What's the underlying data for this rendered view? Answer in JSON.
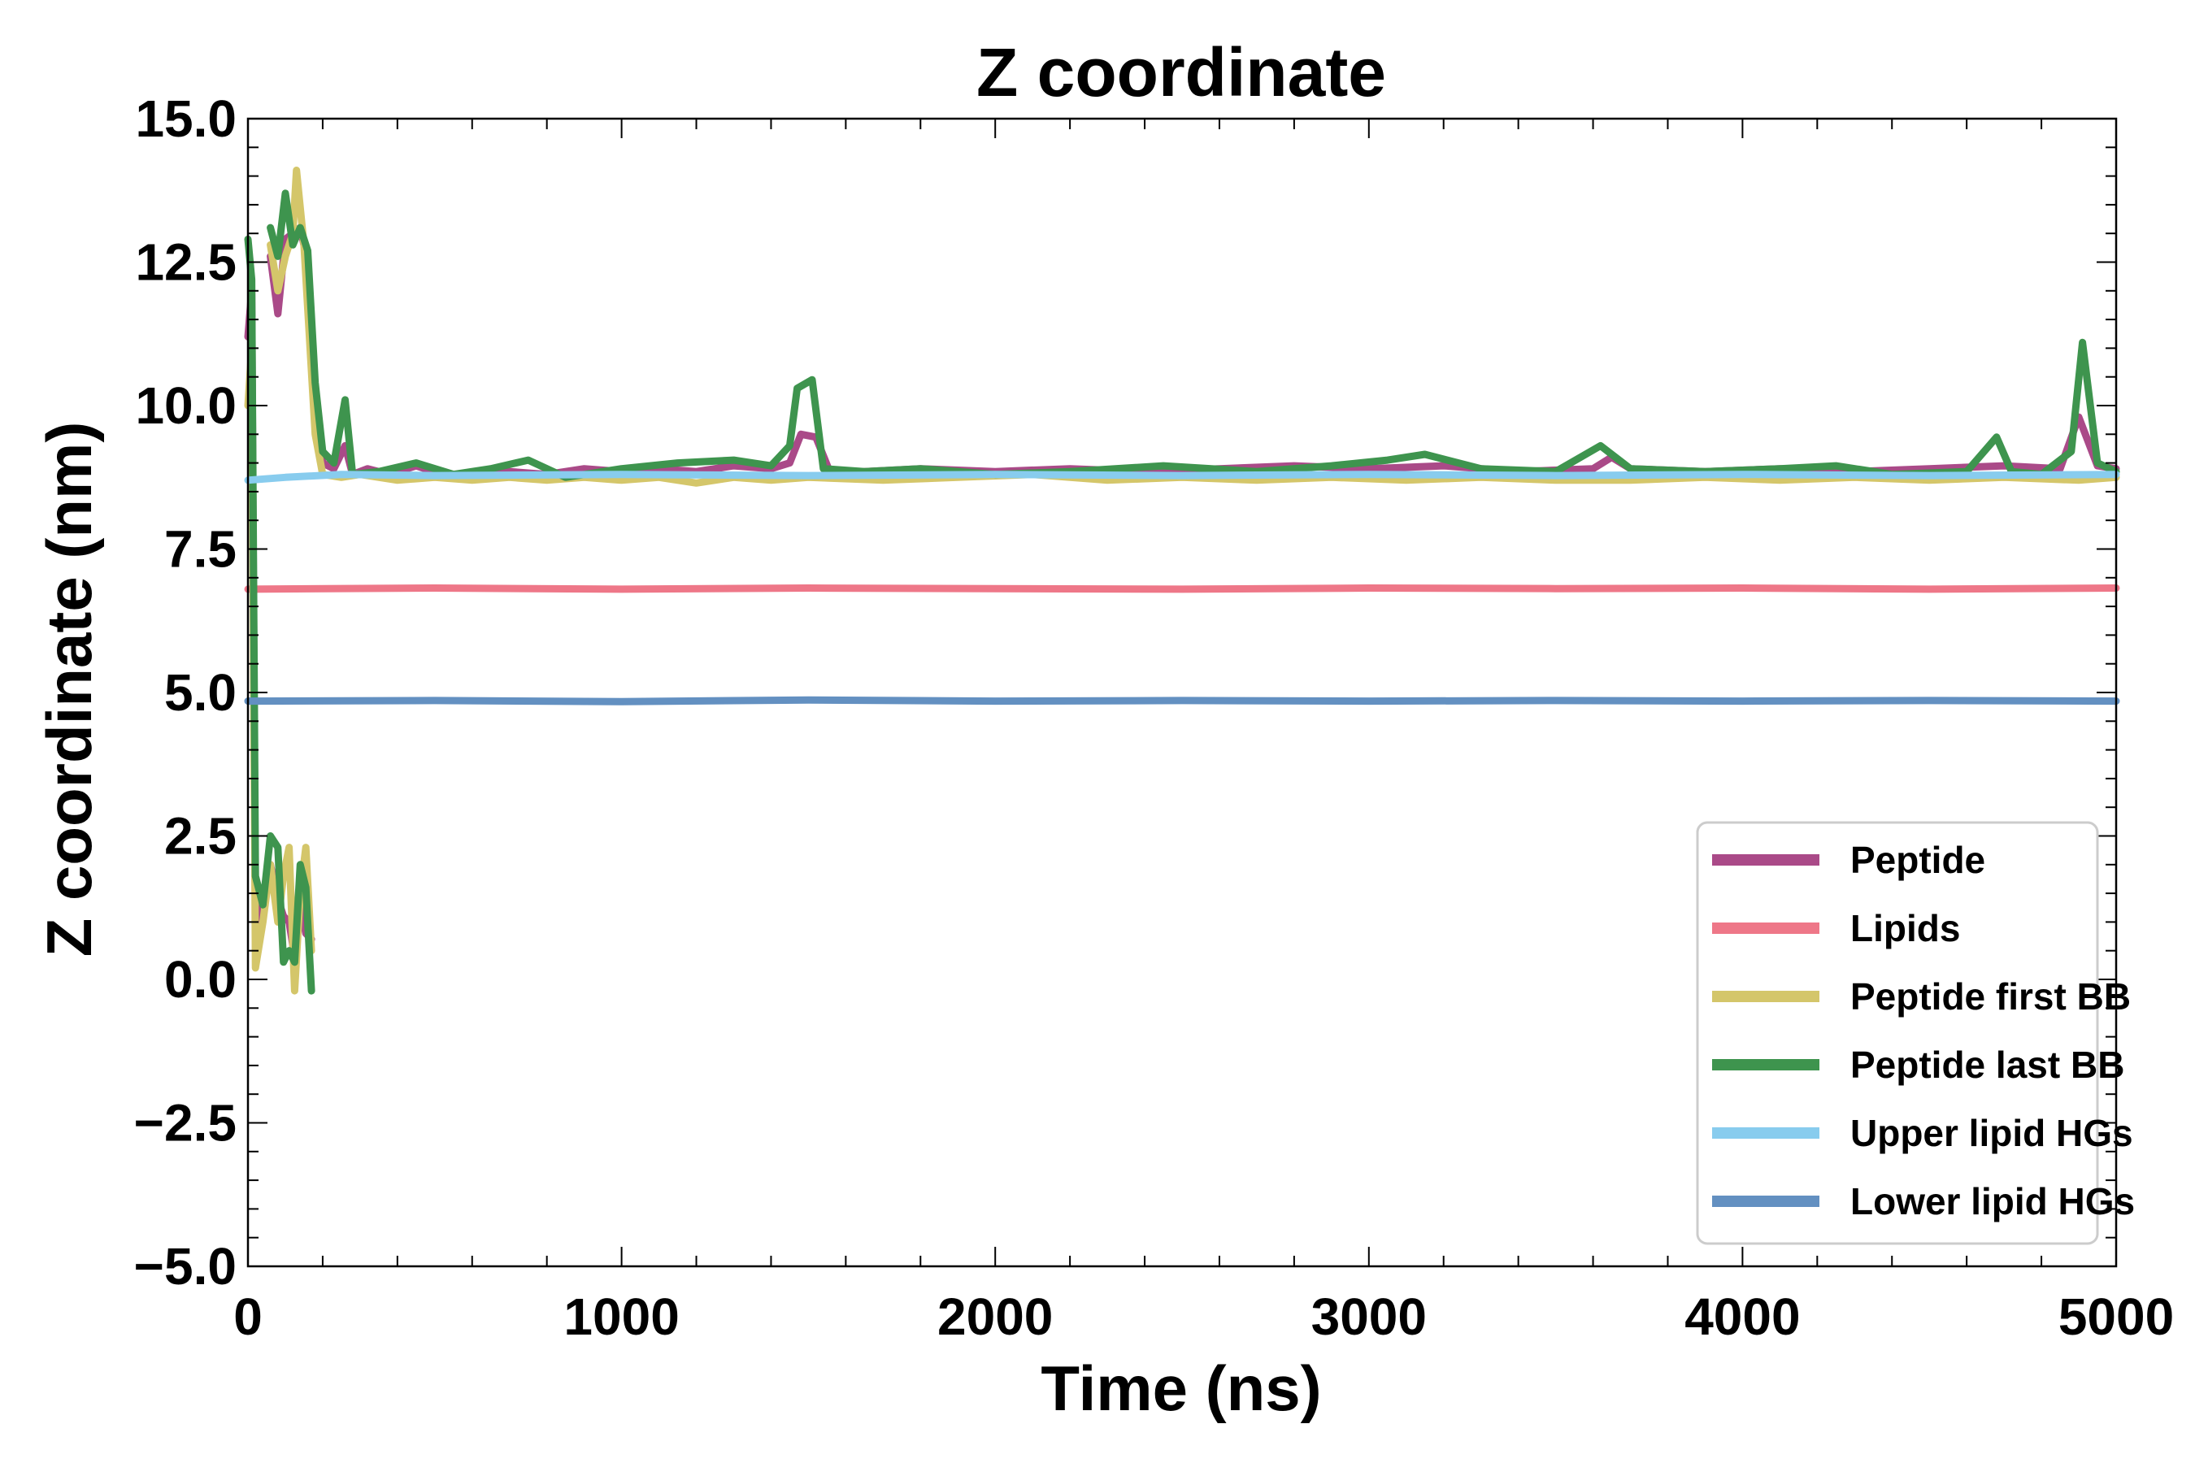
{
  "chart_data": {
    "type": "line",
    "title": "Z coordinate",
    "xlabel": "Time (ns)",
    "ylabel": "Z coordinate (nm)",
    "xlim": [
      0,
      5000
    ],
    "ylim": [
      -5.0,
      15.0
    ],
    "xticks": [
      0,
      1000,
      2000,
      3000,
      4000,
      5000
    ],
    "yticks": [
      -5.0,
      -2.5,
      0.0,
      2.5,
      5.0,
      7.5,
      10.0,
      12.5,
      15.0
    ],
    "xtick_labels": [
      "0",
      "1000",
      "2000",
      "3000",
      "4000",
      "5000"
    ],
    "ytick_labels": [
      "−5.0",
      "−2.5",
      "0.0",
      "2.5",
      "5.0",
      "7.5",
      "10.0",
      "12.5",
      "15.0"
    ],
    "grid": false,
    "legend_position": "lower-right",
    "series": [
      {
        "name": "Peptide",
        "color": "#AA4A88",
        "points": [
          [
            0,
            11.2
          ],
          [
            10,
            12.0
          ],
          [
            20,
            0.9
          ],
          [
            40,
            1.3
          ],
          [
            60,
            2.0
          ],
          [
            80,
            1.4
          ],
          [
            95,
            1.1
          ],
          [
            110,
            1.0
          ],
          [
            125,
            0.4
          ],
          [
            140,
            1.3
          ],
          [
            155,
            0.8
          ],
          [
            170,
            0.7
          ],
          [
            175,
            null
          ],
          [
            60,
            12.6
          ],
          [
            80,
            11.6
          ],
          [
            100,
            12.9
          ],
          [
            120,
            13.0
          ],
          [
            140,
            13.1
          ],
          [
            160,
            12.5
          ],
          [
            180,
            10.2
          ],
          [
            200,
            9.0
          ],
          [
            230,
            8.9
          ],
          [
            260,
            9.3
          ],
          [
            280,
            8.8
          ],
          [
            320,
            8.9
          ],
          [
            380,
            8.8
          ],
          [
            450,
            8.95
          ],
          [
            520,
            8.8
          ],
          [
            600,
            8.8
          ],
          [
            700,
            8.85
          ],
          [
            800,
            8.8
          ],
          [
            900,
            8.9
          ],
          [
            1000,
            8.85
          ],
          [
            1100,
            8.9
          ],
          [
            1200,
            8.85
          ],
          [
            1300,
            8.95
          ],
          [
            1400,
            8.9
          ],
          [
            1450,
            9.0
          ],
          [
            1480,
            9.5
          ],
          [
            1520,
            9.45
          ],
          [
            1560,
            8.8
          ],
          [
            1650,
            8.85
          ],
          [
            1800,
            8.9
          ],
          [
            2000,
            8.85
          ],
          [
            2200,
            8.9
          ],
          [
            2400,
            8.85
          ],
          [
            2600,
            8.9
          ],
          [
            2800,
            8.95
          ],
          [
            3000,
            8.9
          ],
          [
            3200,
            8.95
          ],
          [
            3400,
            8.85
          ],
          [
            3600,
            8.9
          ],
          [
            3650,
            9.1
          ],
          [
            3700,
            8.9
          ],
          [
            3900,
            8.85
          ],
          [
            4100,
            8.9
          ],
          [
            4300,
            8.85
          ],
          [
            4500,
            8.9
          ],
          [
            4700,
            8.95
          ],
          [
            4850,
            8.9
          ],
          [
            4900,
            9.8
          ],
          [
            4950,
            8.95
          ],
          [
            5000,
            8.9
          ]
        ]
      },
      {
        "name": "Lipids",
        "color": "#EE7788",
        "points": [
          [
            0,
            6.8
          ],
          [
            500,
            6.82
          ],
          [
            1000,
            6.8
          ],
          [
            1500,
            6.82
          ],
          [
            2000,
            6.81
          ],
          [
            2500,
            6.8
          ],
          [
            3000,
            6.82
          ],
          [
            3500,
            6.81
          ],
          [
            4000,
            6.82
          ],
          [
            4500,
            6.8
          ],
          [
            5000,
            6.82
          ]
        ]
      },
      {
        "name": "Peptide first BB",
        "color": "#D4C66A",
        "points": [
          [
            0,
            10.0
          ],
          [
            10,
            11.0
          ],
          [
            20,
            0.2
          ],
          [
            40,
            1.0
          ],
          [
            60,
            2.0
          ],
          [
            80,
            1.0
          ],
          [
            95,
            1.8
          ],
          [
            110,
            2.3
          ],
          [
            125,
            -0.2
          ],
          [
            140,
            1.5
          ],
          [
            155,
            2.3
          ],
          [
            170,
            0.5
          ],
          [
            175,
            null
          ],
          [
            60,
            12.8
          ],
          [
            80,
            12.0
          ],
          [
            100,
            12.6
          ],
          [
            120,
            13.0
          ],
          [
            130,
            14.1
          ],
          [
            150,
            12.8
          ],
          [
            180,
            9.5
          ],
          [
            200,
            8.8
          ],
          [
            250,
            8.75
          ],
          [
            300,
            8.8
          ],
          [
            400,
            8.7
          ],
          [
            500,
            8.75
          ],
          [
            600,
            8.7
          ],
          [
            700,
            8.75
          ],
          [
            800,
            8.7
          ],
          [
            900,
            8.75
          ],
          [
            1000,
            8.7
          ],
          [
            1100,
            8.75
          ],
          [
            1200,
            8.65
          ],
          [
            1300,
            8.75
          ],
          [
            1400,
            8.7
          ],
          [
            1500,
            8.75
          ],
          [
            1700,
            8.7
          ],
          [
            1900,
            8.75
          ],
          [
            2100,
            8.8
          ],
          [
            2300,
            8.7
          ],
          [
            2500,
            8.75
          ],
          [
            2700,
            8.7
          ],
          [
            2900,
            8.75
          ],
          [
            3100,
            8.7
          ],
          [
            3300,
            8.75
          ],
          [
            3500,
            8.7
          ],
          [
            3700,
            8.7
          ],
          [
            3900,
            8.75
          ],
          [
            4100,
            8.7
          ],
          [
            4300,
            8.75
          ],
          [
            4500,
            8.7
          ],
          [
            4700,
            8.75
          ],
          [
            4900,
            8.7
          ],
          [
            5000,
            8.75
          ]
        ]
      },
      {
        "name": "Peptide last BB",
        "color": "#3E944E",
        "points": [
          [
            0,
            12.9
          ],
          [
            10,
            12.2
          ],
          [
            20,
            1.8
          ],
          [
            40,
            1.3
          ],
          [
            60,
            2.5
          ],
          [
            80,
            2.3
          ],
          [
            95,
            0.3
          ],
          [
            110,
            0.5
          ],
          [
            125,
            0.3
          ],
          [
            140,
            2.0
          ],
          [
            155,
            1.6
          ],
          [
            170,
            -0.2
          ],
          [
            175,
            null
          ],
          [
            60,
            13.1
          ],
          [
            80,
            12.6
          ],
          [
            100,
            13.7
          ],
          [
            120,
            12.8
          ],
          [
            140,
            13.1
          ],
          [
            160,
            12.7
          ],
          [
            180,
            10.4
          ],
          [
            200,
            9.2
          ],
          [
            230,
            9.0
          ],
          [
            260,
            10.1
          ],
          [
            280,
            8.8
          ],
          [
            350,
            8.85
          ],
          [
            450,
            9.0
          ],
          [
            550,
            8.8
          ],
          [
            650,
            8.9
          ],
          [
            750,
            9.05
          ],
          [
            850,
            8.75
          ],
          [
            1000,
            8.9
          ],
          [
            1150,
            9.0
          ],
          [
            1300,
            9.05
          ],
          [
            1400,
            8.95
          ],
          [
            1450,
            9.3
          ],
          [
            1470,
            10.3
          ],
          [
            1510,
            10.45
          ],
          [
            1540,
            8.9
          ],
          [
            1650,
            8.85
          ],
          [
            1800,
            8.9
          ],
          [
            2000,
            8.8
          ],
          [
            2200,
            8.85
          ],
          [
            2450,
            8.95
          ],
          [
            2700,
            8.85
          ],
          [
            2900,
            8.95
          ],
          [
            3050,
            9.05
          ],
          [
            3150,
            9.15
          ],
          [
            3300,
            8.9
          ],
          [
            3500,
            8.85
          ],
          [
            3620,
            9.3
          ],
          [
            3700,
            8.9
          ],
          [
            3900,
            8.85
          ],
          [
            4100,
            8.9
          ],
          [
            4250,
            8.95
          ],
          [
            4400,
            8.8
          ],
          [
            4600,
            8.85
          ],
          [
            4680,
            9.45
          ],
          [
            4720,
            8.85
          ],
          [
            4800,
            8.8
          ],
          [
            4880,
            9.2
          ],
          [
            4910,
            11.1
          ],
          [
            4950,
            9.0
          ],
          [
            5000,
            8.85
          ]
        ]
      },
      {
        "name": "Upper lipid HGs",
        "color": "#88CCEE",
        "points": [
          [
            0,
            8.7
          ],
          [
            100,
            8.75
          ],
          [
            250,
            8.8
          ],
          [
            500,
            8.78
          ],
          [
            1000,
            8.8
          ],
          [
            1500,
            8.78
          ],
          [
            2000,
            8.8
          ],
          [
            2500,
            8.78
          ],
          [
            3000,
            8.8
          ],
          [
            3500,
            8.78
          ],
          [
            4000,
            8.8
          ],
          [
            4500,
            8.78
          ],
          [
            5000,
            8.8
          ]
        ]
      },
      {
        "name": "Lower lipid HGs",
        "color": "#6390C1",
        "points": [
          [
            0,
            4.85
          ],
          [
            500,
            4.86
          ],
          [
            1000,
            4.84
          ],
          [
            1500,
            4.87
          ],
          [
            2000,
            4.85
          ],
          [
            2500,
            4.86
          ],
          [
            3000,
            4.85
          ],
          [
            3500,
            4.86
          ],
          [
            4000,
            4.85
          ],
          [
            4500,
            4.86
          ],
          [
            5000,
            4.85
          ]
        ]
      }
    ]
  }
}
